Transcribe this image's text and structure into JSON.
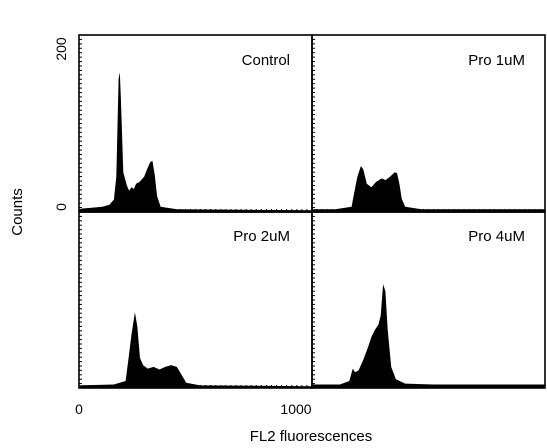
{
  "chart_data": {
    "type": "histogram-grid",
    "xlabel": "FL2 fluorescences",
    "ylabel": "Counts",
    "xlim": [
      0,
      1000
    ],
    "ylim": [
      0,
      200
    ],
    "x_tick_labels": [
      "0",
      "1000"
    ],
    "y_tick_labels": [
      "0",
      "200"
    ],
    "panels": [
      {
        "title": "Control",
        "points": [
          [
            0,
            3
          ],
          [
            15,
            4
          ],
          [
            60,
            5
          ],
          [
            100,
            6
          ],
          [
            130,
            8
          ],
          [
            150,
            14
          ],
          [
            160,
            40
          ],
          [
            170,
            150
          ],
          [
            175,
            158
          ],
          [
            180,
            128
          ],
          [
            190,
            45
          ],
          [
            205,
            30
          ],
          [
            215,
            24
          ],
          [
            225,
            28
          ],
          [
            235,
            26
          ],
          [
            245,
            32
          ],
          [
            260,
            34
          ],
          [
            280,
            40
          ],
          [
            295,
            50
          ],
          [
            305,
            56
          ],
          [
            315,
            58
          ],
          [
            325,
            42
          ],
          [
            335,
            18
          ],
          [
            350,
            6
          ],
          [
            420,
            3
          ],
          [
            1000,
            2
          ]
        ]
      },
      {
        "title": "Pro 1uM",
        "points": [
          [
            0,
            3
          ],
          [
            100,
            3
          ],
          [
            170,
            6
          ],
          [
            180,
            20
          ],
          [
            195,
            40
          ],
          [
            210,
            52
          ],
          [
            220,
            48
          ],
          [
            235,
            32
          ],
          [
            255,
            28
          ],
          [
            275,
            34
          ],
          [
            300,
            38
          ],
          [
            315,
            36
          ],
          [
            335,
            40
          ],
          [
            355,
            45
          ],
          [
            365,
            44
          ],
          [
            375,
            32
          ],
          [
            385,
            15
          ],
          [
            400,
            6
          ],
          [
            470,
            3
          ],
          [
            1000,
            3
          ]
        ]
      },
      {
        "title": "Pro 2uM",
        "points": [
          [
            0,
            3
          ],
          [
            150,
            4
          ],
          [
            200,
            8
          ],
          [
            210,
            28
          ],
          [
            225,
            60
          ],
          [
            240,
            86
          ],
          [
            250,
            70
          ],
          [
            262,
            34
          ],
          [
            275,
            26
          ],
          [
            295,
            22
          ],
          [
            320,
            24
          ],
          [
            345,
            21
          ],
          [
            370,
            24
          ],
          [
            395,
            26
          ],
          [
            420,
            24
          ],
          [
            440,
            15
          ],
          [
            460,
            6
          ],
          [
            520,
            3
          ],
          [
            1000,
            2
          ]
        ]
      },
      {
        "title": "Pro 4uM",
        "points": [
          [
            0,
            4
          ],
          [
            120,
            4
          ],
          [
            160,
            8
          ],
          [
            175,
            22
          ],
          [
            185,
            18
          ],
          [
            200,
            20
          ],
          [
            220,
            32
          ],
          [
            240,
            46
          ],
          [
            255,
            58
          ],
          [
            270,
            66
          ],
          [
            285,
            72
          ],
          [
            295,
            82
          ],
          [
            305,
            118
          ],
          [
            315,
            110
          ],
          [
            325,
            66
          ],
          [
            340,
            24
          ],
          [
            360,
            10
          ],
          [
            400,
            5
          ],
          [
            520,
            4
          ],
          [
            1000,
            4
          ]
        ]
      }
    ],
    "grid": false,
    "legend": "none"
  }
}
